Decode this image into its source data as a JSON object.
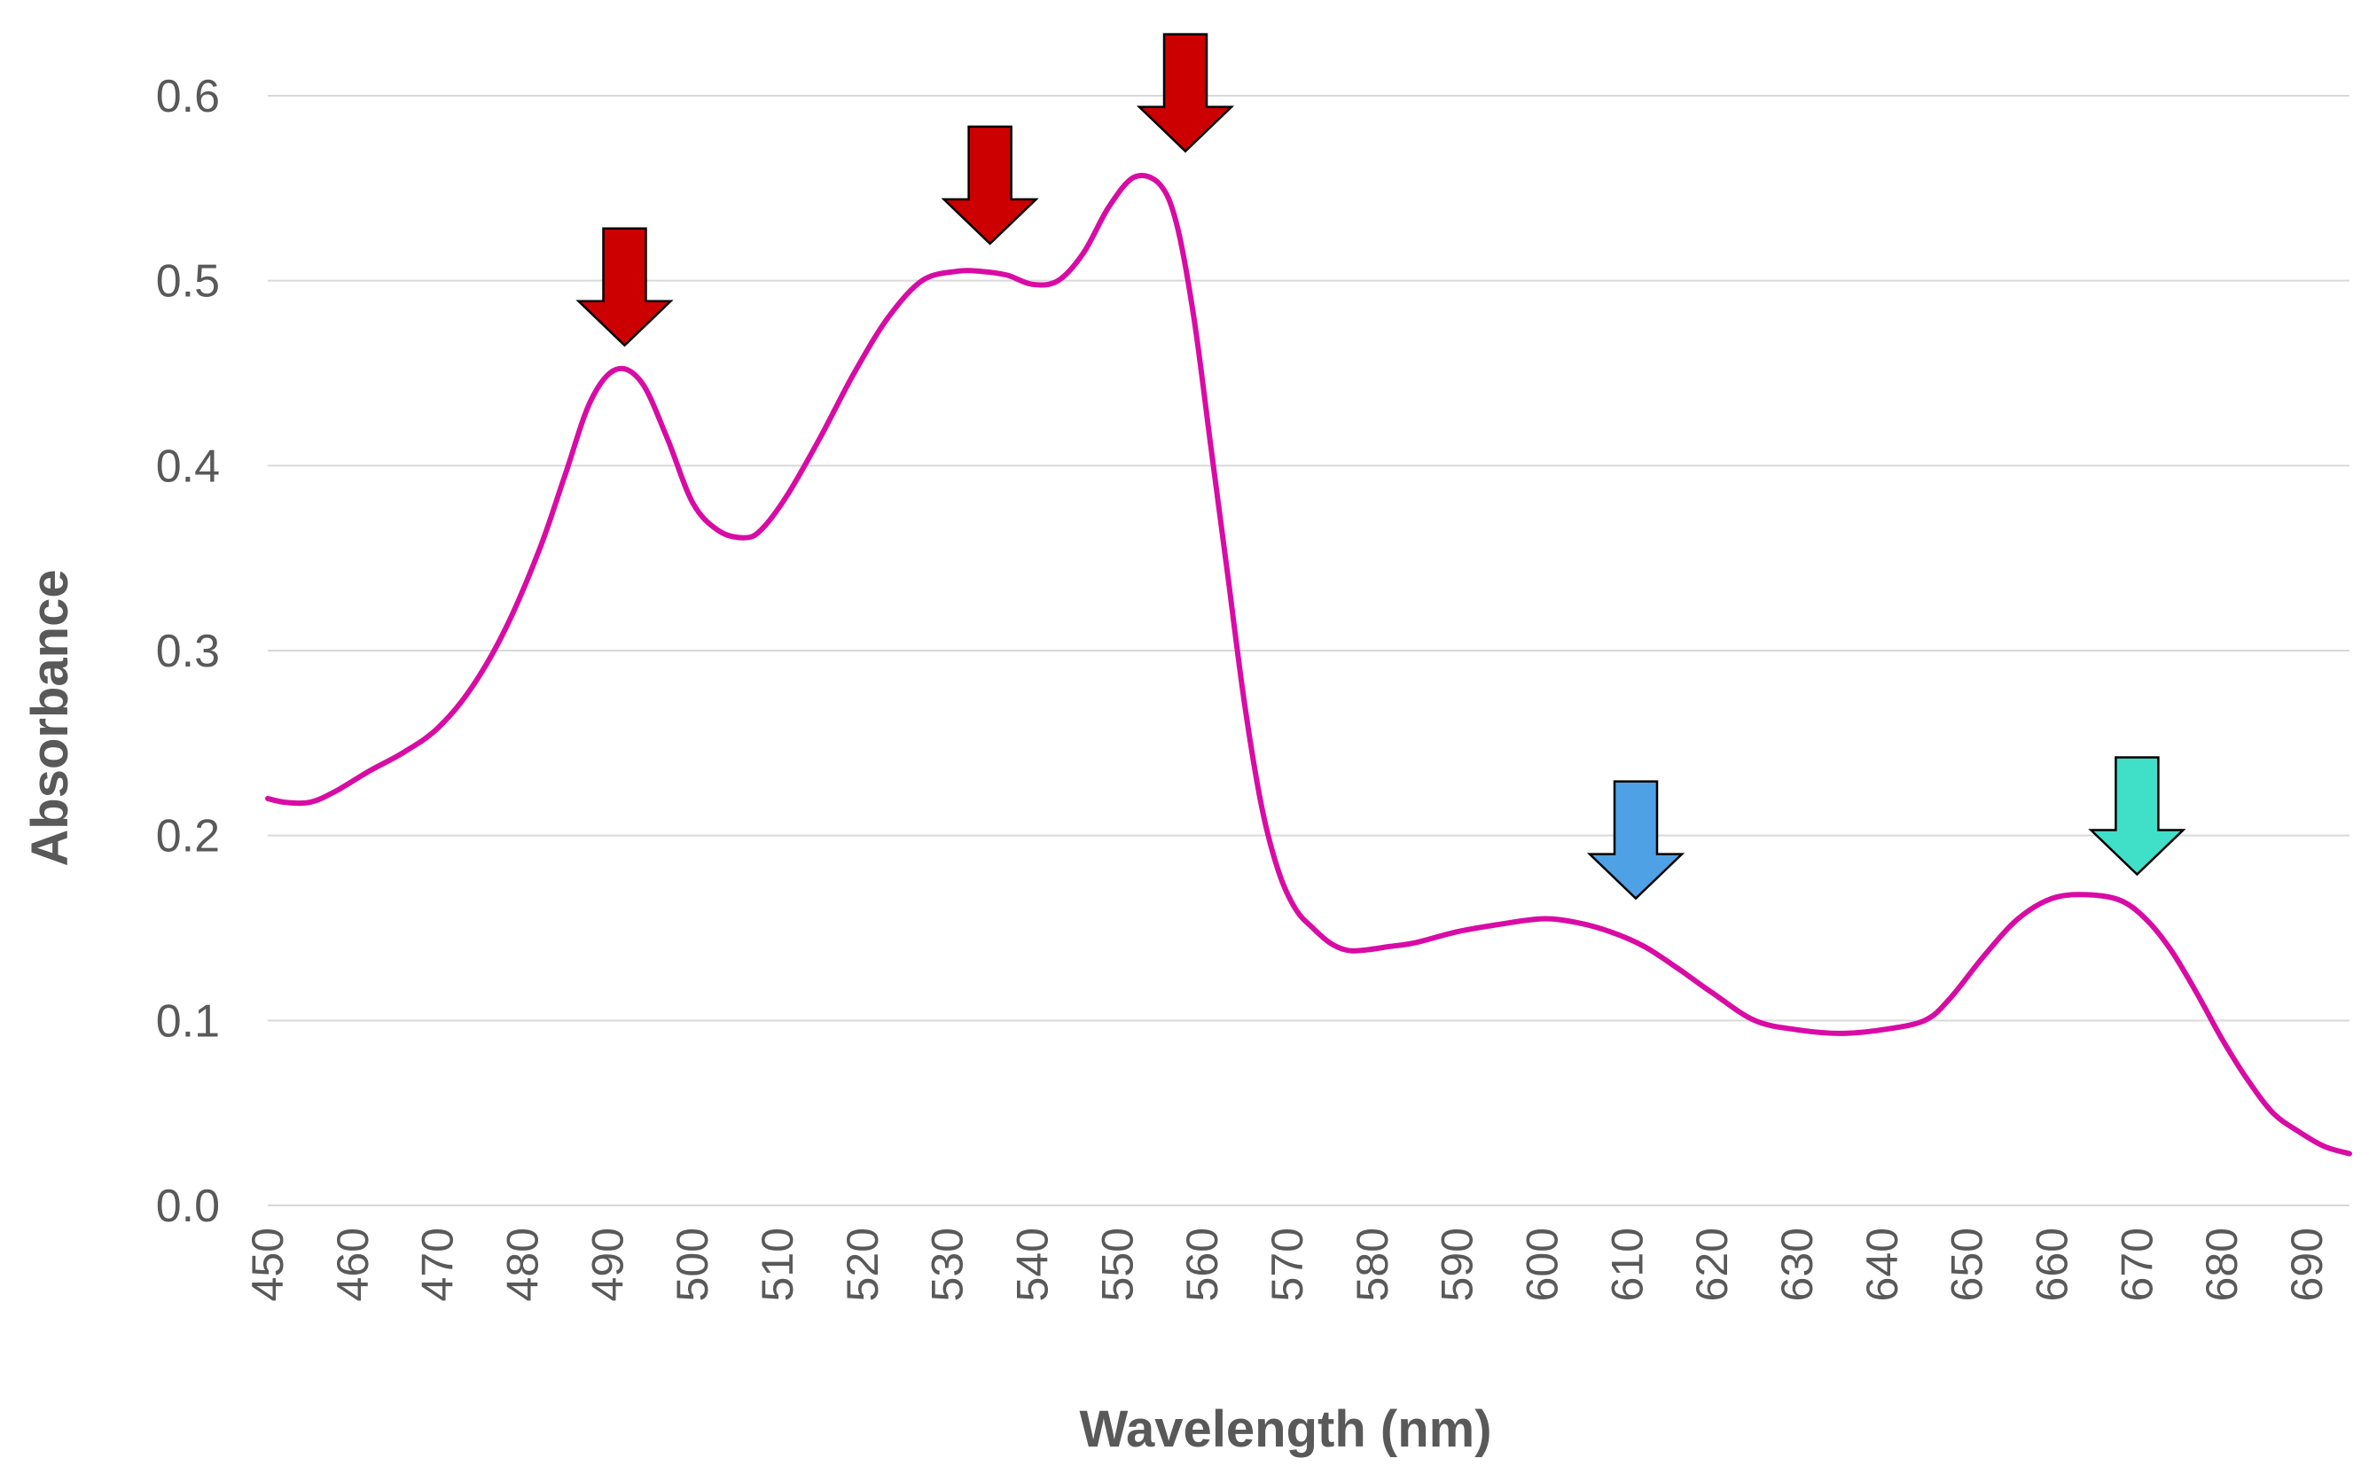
{
  "chart_data": {
    "type": "line",
    "title": "",
    "xlabel": "Wavelength (nm)",
    "ylabel": "Absorbance",
    "xlim": [
      450,
      695
    ],
    "ylim": [
      0.0,
      0.6
    ],
    "grid": true,
    "x_ticks": [
      450,
      460,
      470,
      480,
      490,
      500,
      510,
      520,
      530,
      540,
      550,
      560,
      570,
      580,
      590,
      600,
      610,
      620,
      630,
      640,
      650,
      660,
      670,
      680,
      690
    ],
    "x_tick_labels": [
      "450",
      "460",
      "470",
      "480",
      "490",
      "500",
      "510",
      "520",
      "530",
      "540",
      "550",
      "560",
      "570",
      "580",
      "590",
      "600",
      "610",
      "620",
      "630",
      "640",
      "650",
      "660",
      "670",
      "680",
      "690"
    ],
    "y_ticks": [
      0.0,
      0.1,
      0.2,
      0.3,
      0.4,
      0.5,
      0.6
    ],
    "y_tick_labels": [
      "0.0",
      "0.1",
      "0.2",
      "0.3",
      "0.4",
      "0.5",
      "0.6"
    ],
    "series": [
      {
        "name": "Absorbance",
        "color": "#D90BA5",
        "x": [
          450,
          452,
          455,
          458,
          462,
          466,
          470,
          474,
          478,
          482,
          485,
          488,
          491,
          494,
          497,
          500,
          503,
          506,
          508,
          511,
          515,
          519,
          523,
          527,
          531,
          534,
          537,
          540,
          543,
          546,
          549,
          552,
          555,
          557,
          559,
          561,
          563,
          565,
          567,
          569,
          571,
          573,
          575,
          577,
          579,
          582,
          585,
          590,
          595,
          600,
          604,
          608,
          612,
          616,
          620,
          625,
          630,
          635,
          640,
          645,
          648,
          652,
          656,
          660,
          664,
          668,
          671,
          674,
          677,
          680,
          683,
          686,
          689,
          692,
          695
        ],
        "y": [
          0.22,
          0.218,
          0.218,
          0.224,
          0.235,
          0.245,
          0.258,
          0.28,
          0.312,
          0.355,
          0.395,
          0.435,
          0.452,
          0.445,
          0.415,
          0.38,
          0.365,
          0.361,
          0.365,
          0.383,
          0.415,
          0.45,
          0.48,
          0.5,
          0.505,
          0.505,
          0.503,
          0.498,
          0.5,
          0.515,
          0.54,
          0.556,
          0.552,
          0.53,
          0.48,
          0.41,
          0.34,
          0.27,
          0.215,
          0.18,
          0.16,
          0.15,
          0.142,
          0.138,
          0.138,
          0.14,
          0.142,
          0.148,
          0.152,
          0.155,
          0.153,
          0.148,
          0.14,
          0.128,
          0.115,
          0.1,
          0.095,
          0.093,
          0.095,
          0.1,
          0.112,
          0.135,
          0.155,
          0.166,
          0.168,
          0.165,
          0.155,
          0.138,
          0.115,
          0.09,
          0.068,
          0.05,
          0.04,
          0.032,
          0.028
        ]
      }
    ],
    "annotations": [
      {
        "type": "arrow",
        "x": 492,
        "tip_y": 0.465,
        "color": "#CC0000"
      },
      {
        "type": "arrow",
        "x": 535,
        "tip_y": 0.52,
        "color": "#CC0000"
      },
      {
        "type": "arrow",
        "x": 558,
        "tip_y": 0.57,
        "color": "#CC0000"
      },
      {
        "type": "arrow",
        "x": 611,
        "tip_y": 0.166,
        "color": "#4EA1E4"
      },
      {
        "type": "arrow",
        "x": 670,
        "tip_y": 0.179,
        "color": "#3FDFC8"
      }
    ]
  }
}
